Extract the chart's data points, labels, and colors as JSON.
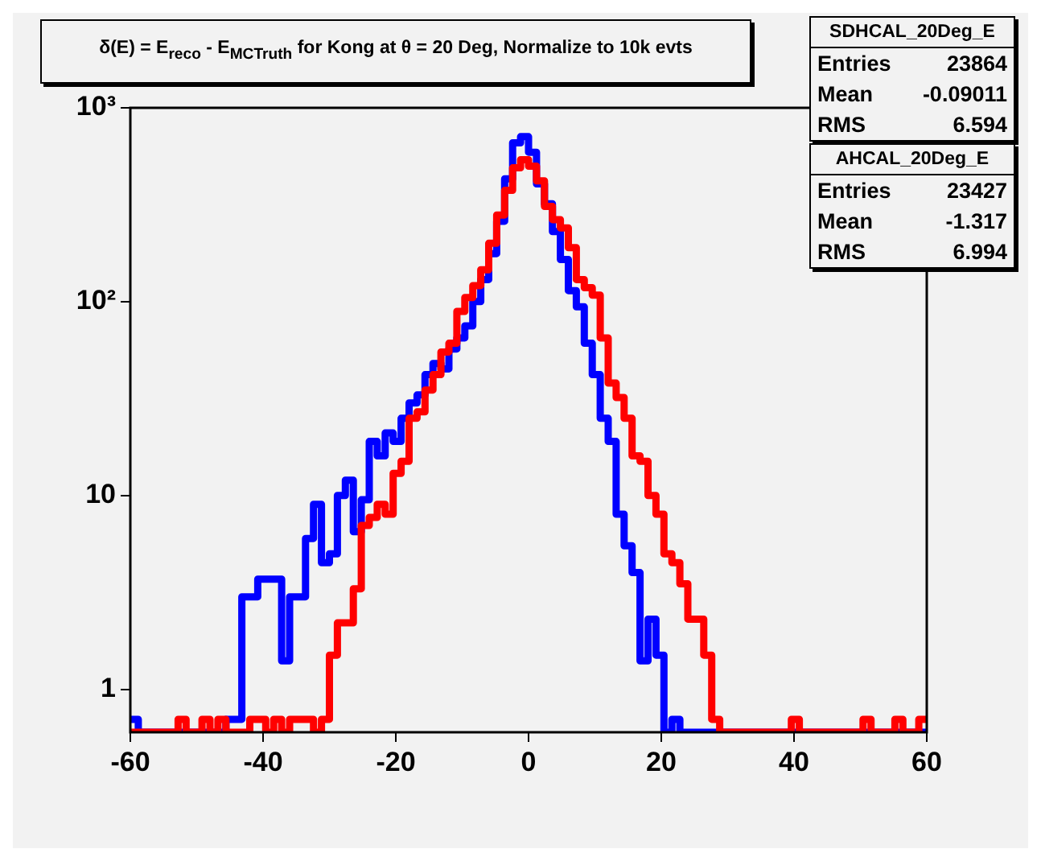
{
  "chart_data": {
    "type": "histogram",
    "title": "δ(E) = E$_{reco}$ - E$_{MCTruth}$ for Kong at θ = 20 Deg, Normalize to 10k evts",
    "bins": [
      -60,
      -58.8,
      -57.6,
      -56.4,
      -55.2,
      -54,
      -52.8,
      -51.6,
      -50.4,
      -49.2,
      -48,
      -46.8,
      -45.6,
      -44.4,
      -43.2,
      -42,
      -40.8,
      -39.6,
      -38.4,
      -37.2,
      -36,
      -34.8,
      -33.6,
      -32.4,
      -31.2,
      -30,
      -28.8,
      -27.6,
      -26.4,
      -25.2,
      -24,
      -22.8,
      -21.6,
      -20.4,
      -19.2,
      -18,
      -16.8,
      -15.6,
      -14.4,
      -13.2,
      -12,
      -10.8,
      -9.6,
      -8.4,
      -7.2,
      -6,
      -4.8,
      -3.6,
      -2.4,
      -1.2,
      0,
      1.2,
      2.4,
      3.6,
      4.8,
      6,
      7.2,
      8.4,
      9.6,
      10.8,
      12,
      13.2,
      14.4,
      15.6,
      16.8,
      18,
      19.2,
      20.4,
      21.6,
      22.8,
      24,
      25.2,
      26.4,
      27.6,
      28.8,
      30,
      31.2,
      32.4,
      33.6,
      34.8,
      36,
      37.2,
      38.4,
      39.6,
      40.8,
      42,
      43.2,
      44.4,
      45.6,
      46.8,
      48,
      49.2,
      50.4,
      51.6,
      52.8,
      54,
      55.2,
      56.4,
      57.6,
      58.8,
      60
    ],
    "series": [
      {
        "color": "#ff0000",
        "values": [
          null,
          null,
          null,
          null,
          null,
          null,
          0.7,
          null,
          null,
          0.7,
          null,
          0.7,
          null,
          null,
          null,
          0.7,
          0.7,
          null,
          0.7,
          null,
          0.7,
          0.7,
          0.7,
          null,
          0.7,
          1.5,
          2.2,
          2.2,
          3.3,
          7,
          7.7,
          9,
          8,
          13,
          15,
          25,
          27,
          35,
          42,
          55,
          61,
          89,
          105,
          121,
          146,
          200,
          280,
          375,
          490,
          540,
          500,
          420,
          310,
          265,
          240,
          190,
          130,
          118,
          108,
          65,
          38,
          32,
          25,
          16,
          15,
          10,
          8,
          5,
          4.5,
          3.5,
          2.3,
          2.3,
          1.5,
          0.7,
          null,
          null,
          null,
          null,
          null,
          null,
          null,
          null,
          null,
          0.7,
          null,
          null,
          null,
          null,
          null,
          null,
          null,
          null,
          0.7,
          null,
          null,
          null,
          0.7,
          null,
          null,
          0.7
        ]
      },
      {
        "color": "#0000ff",
        "values": [
          0.7,
          null,
          null,
          null,
          null,
          null,
          null,
          null,
          null,
          null,
          null,
          null,
          0.7,
          0.7,
          3,
          3,
          3.7,
          3.7,
          3.7,
          1.4,
          3,
          3,
          6,
          9,
          4.5,
          5,
          10,
          12,
          6.5,
          9.5,
          19,
          16,
          21,
          19,
          25,
          30,
          33,
          42,
          48,
          45,
          57,
          65,
          75,
          100,
          130,
          177,
          260,
          430,
          660,
          710,
          590,
          405,
          320,
          230,
          165,
          114,
          94,
          61,
          42,
          25,
          19,
          8,
          5.5,
          4,
          1.4,
          2.3,
          1.5,
          null,
          0.7,
          null,
          null,
          null,
          null,
          null,
          null,
          null,
          null,
          null,
          null,
          null,
          null,
          null,
          null,
          null,
          null,
          null,
          null,
          null,
          null,
          null,
          null,
          null,
          null,
          null,
          null,
          null,
          null,
          null,
          null,
          null
        ]
      }
    ],
    "xlim": [
      -60,
      60
    ],
    "xticks": [
      -60,
      -40,
      -20,
      0,
      20,
      40,
      60
    ],
    "ylim": [
      0.6,
      1000
    ],
    "yticks": [
      1,
      10,
      {
        "value": 100,
        "label": "10²"
      },
      {
        "value": 1000,
        "label": "10³"
      }
    ],
    "log": "y",
    "grid": false,
    "legend": false,
    "annotations": [
      "SDHCAL_20Deg_E",
      "Entries 23864",
      "Mean -0.09011",
      "RMS 6.594",
      "AHCAL_20Deg_E",
      "Entries 23427",
      "Mean -1.317",
      "RMS 6.994"
    ]
  }
}
